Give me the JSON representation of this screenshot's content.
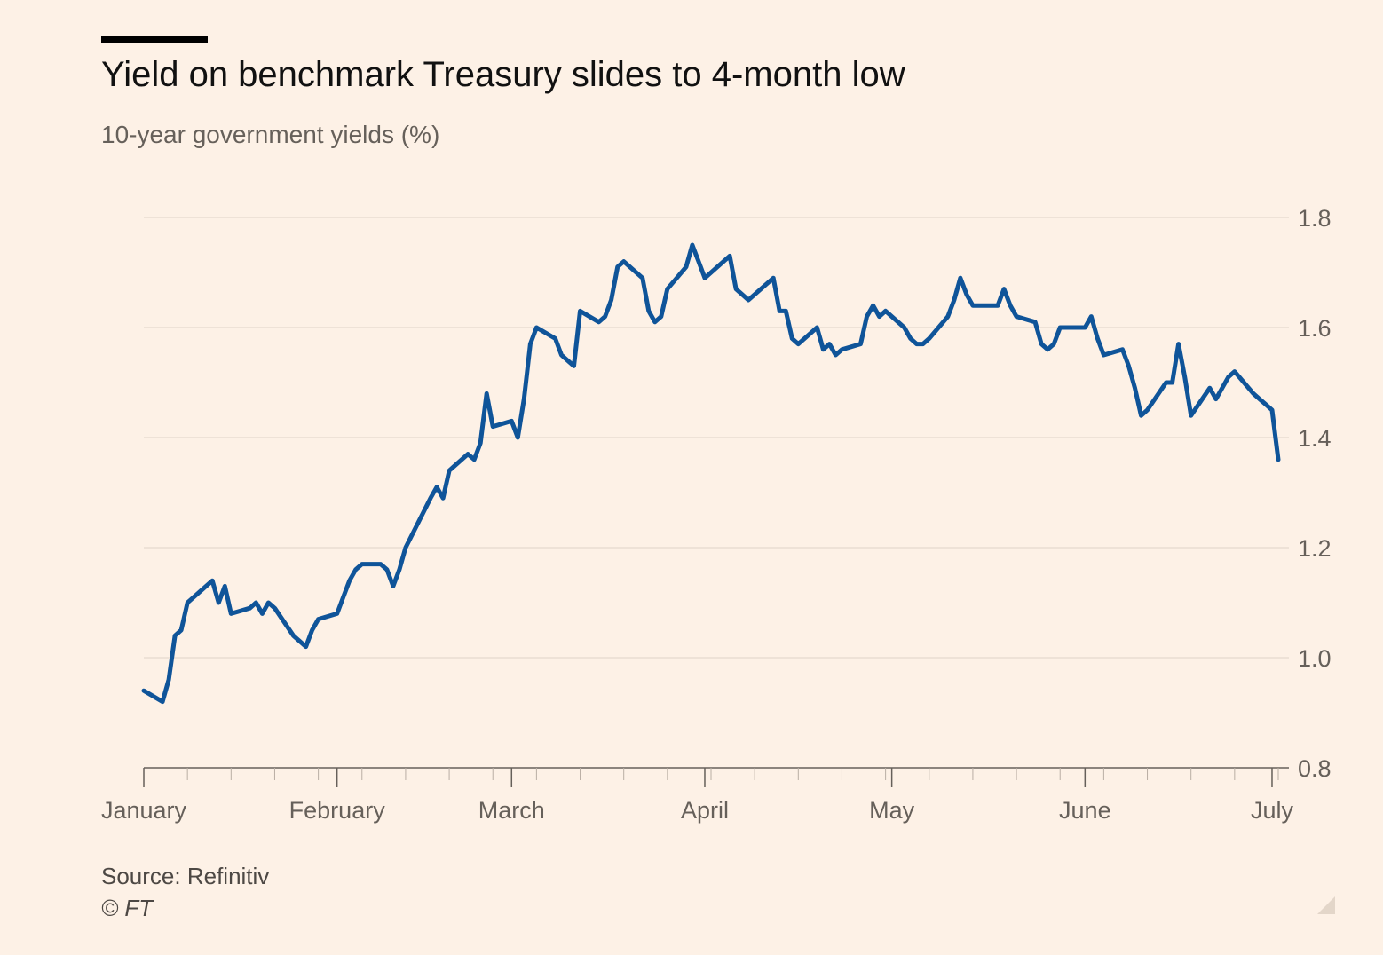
{
  "header": {
    "title": "Yield on benchmark Treasury slides to 4-month low",
    "subtitle": "10-year government yields (%)"
  },
  "footer": {
    "source": "Source: Refinitiv",
    "copyright": "© FT"
  },
  "colors": {
    "background": "#fdf1e6",
    "line": "#0f5499",
    "grid": "#e6d9ce",
    "axis": "#66605a",
    "text": "#66605a"
  },
  "chart_data": {
    "type": "line",
    "title": "Yield on benchmark Treasury slides to 4-month low",
    "subtitle": "10-year government yields (%)",
    "xlabel": "",
    "ylabel": "",
    "y_axis_position": "right",
    "ylim": [
      0.8,
      1.8
    ],
    "yticks": [
      0.8,
      1.0,
      1.2,
      1.4,
      1.6,
      1.8
    ],
    "ytick_labels": [
      "0.8",
      "1.0",
      "1.2",
      "1.4",
      "1.6",
      "1.8"
    ],
    "xlim": [
      "2021-01-01",
      "2021-07-02"
    ],
    "xtick_labels": [
      {
        "label": "January",
        "date": "2021-01-01"
      },
      {
        "label": "February",
        "date": "2021-02-01"
      },
      {
        "label": "March",
        "date": "2021-03-01"
      },
      {
        "label": "April",
        "date": "2021-04-01"
      },
      {
        "label": "May",
        "date": "2021-05-01"
      },
      {
        "label": "June",
        "date": "2021-06-01"
      },
      {
        "label": "July",
        "date": "2021-07-01"
      }
    ],
    "grid": true,
    "series": [
      {
        "color": "#0f5499",
        "x": [
          "2021-01-01",
          "2021-01-04",
          "2021-01-05",
          "2021-01-06",
          "2021-01-07",
          "2021-01-08",
          "2021-01-11",
          "2021-01-12",
          "2021-01-13",
          "2021-01-14",
          "2021-01-15",
          "2021-01-18",
          "2021-01-19",
          "2021-01-20",
          "2021-01-21",
          "2021-01-22",
          "2021-01-25",
          "2021-01-26",
          "2021-01-27",
          "2021-01-28",
          "2021-01-29",
          "2021-02-01",
          "2021-02-02",
          "2021-02-03",
          "2021-02-04",
          "2021-02-05",
          "2021-02-08",
          "2021-02-09",
          "2021-02-10",
          "2021-02-11",
          "2021-02-12",
          "2021-02-16",
          "2021-02-17",
          "2021-02-18",
          "2021-02-19",
          "2021-02-22",
          "2021-02-23",
          "2021-02-24",
          "2021-02-25",
          "2021-02-26",
          "2021-03-01",
          "2021-03-02",
          "2021-03-03",
          "2021-03-04",
          "2021-03-05",
          "2021-03-08",
          "2021-03-09",
          "2021-03-10",
          "2021-03-11",
          "2021-03-12",
          "2021-03-15",
          "2021-03-16",
          "2021-03-17",
          "2021-03-18",
          "2021-03-19",
          "2021-03-22",
          "2021-03-23",
          "2021-03-24",
          "2021-03-25",
          "2021-03-26",
          "2021-03-29",
          "2021-03-30",
          "2021-03-31",
          "2021-04-01",
          "2021-04-05",
          "2021-04-06",
          "2021-04-07",
          "2021-04-08",
          "2021-04-09",
          "2021-04-12",
          "2021-04-13",
          "2021-04-14",
          "2021-04-15",
          "2021-04-16",
          "2021-04-19",
          "2021-04-20",
          "2021-04-21",
          "2021-04-22",
          "2021-04-23",
          "2021-04-26",
          "2021-04-27",
          "2021-04-28",
          "2021-04-29",
          "2021-04-30",
          "2021-05-03",
          "2021-05-04",
          "2021-05-05",
          "2021-05-06",
          "2021-05-07",
          "2021-05-10",
          "2021-05-11",
          "2021-05-12",
          "2021-05-13",
          "2021-05-14",
          "2021-05-17",
          "2021-05-18",
          "2021-05-19",
          "2021-05-20",
          "2021-05-21",
          "2021-05-24",
          "2021-05-25",
          "2021-05-26",
          "2021-05-27",
          "2021-05-28",
          "2021-06-01",
          "2021-06-02",
          "2021-06-03",
          "2021-06-04",
          "2021-06-07",
          "2021-06-08",
          "2021-06-09",
          "2021-06-10",
          "2021-06-11",
          "2021-06-14",
          "2021-06-15",
          "2021-06-16",
          "2021-06-17",
          "2021-06-18",
          "2021-06-21",
          "2021-06-22",
          "2021-06-23",
          "2021-06-24",
          "2021-06-25",
          "2021-06-28",
          "2021-06-29",
          "2021-06-30",
          "2021-07-01",
          "2021-07-02"
        ],
        "y": [
          0.94,
          0.92,
          0.96,
          1.04,
          1.05,
          1.1,
          1.13,
          1.14,
          1.1,
          1.13,
          1.08,
          1.09,
          1.1,
          1.08,
          1.1,
          1.09,
          1.04,
          1.03,
          1.02,
          1.05,
          1.07,
          1.08,
          1.11,
          1.14,
          1.16,
          1.17,
          1.17,
          1.16,
          1.13,
          1.16,
          1.2,
          1.29,
          1.31,
          1.29,
          1.34,
          1.37,
          1.36,
          1.39,
          1.48,
          1.42,
          1.43,
          1.4,
          1.47,
          1.57,
          1.6,
          1.58,
          1.55,
          1.54,
          1.53,
          1.63,
          1.61,
          1.62,
          1.65,
          1.71,
          1.72,
          1.69,
          1.63,
          1.61,
          1.62,
          1.67,
          1.71,
          1.75,
          1.72,
          1.69,
          1.73,
          1.67,
          1.66,
          1.65,
          1.66,
          1.69,
          1.63,
          1.63,
          1.58,
          1.57,
          1.6,
          1.56,
          1.57,
          1.55,
          1.56,
          1.57,
          1.62,
          1.64,
          1.62,
          1.63,
          1.6,
          1.58,
          1.57,
          1.57,
          1.58,
          1.62,
          1.65,
          1.69,
          1.66,
          1.64,
          1.64,
          1.64,
          1.67,
          1.64,
          1.62,
          1.61,
          1.57,
          1.56,
          1.57,
          1.6,
          1.6,
          1.62,
          1.58,
          1.55,
          1.56,
          1.53,
          1.49,
          1.44,
          1.45,
          1.5,
          1.5,
          1.57,
          1.51,
          1.44,
          1.49,
          1.47,
          1.49,
          1.51,
          1.52,
          1.48,
          1.47,
          1.46,
          1.45,
          1.36
        ]
      }
    ]
  }
}
